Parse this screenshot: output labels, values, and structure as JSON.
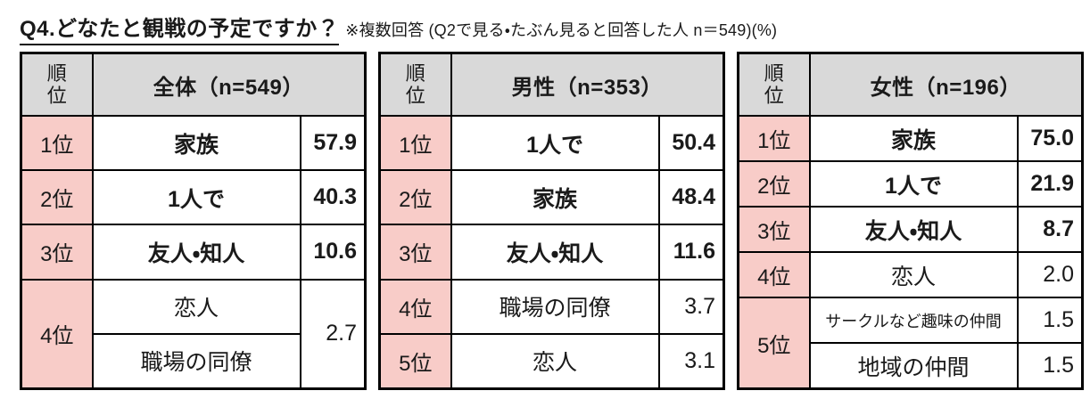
{
  "header": {
    "title": "Q4.どなたと観戦の予定ですか？",
    "note": "※複数回答 (Q2で見る・たぶん見ると回答した人 n＝549)(%)"
  },
  "rank_header": "順位",
  "colors": {
    "header_bg": "#d9d9d9",
    "rank_bg": "#f8ccc8",
    "border": "#000000"
  },
  "chart_data": [
    {
      "type": "table",
      "title": "全体（n=549）",
      "group": "全体",
      "n": 549,
      "unit": "%",
      "rows": [
        {
          "rank": "1位",
          "label": "家族",
          "value": "57.9"
        },
        {
          "rank": "2位",
          "label": "1人で",
          "value": "40.3"
        },
        {
          "rank": "3位",
          "label": "友人・知人",
          "value": "10.6"
        },
        {
          "rank": "4位",
          "label": "恋人",
          "label2": "職場の同僚",
          "value": "2.7"
        }
      ]
    },
    {
      "type": "table",
      "title": "男性（n=353）",
      "group": "男性",
      "n": 353,
      "unit": "%",
      "rows": [
        {
          "rank": "1位",
          "label": "1人で",
          "value": "50.4"
        },
        {
          "rank": "2位",
          "label": "家族",
          "value": "48.4"
        },
        {
          "rank": "3位",
          "label": "友人・知人",
          "value": "11.6"
        },
        {
          "rank": "4位",
          "label": "職場の同僚",
          "value": "3.7"
        },
        {
          "rank": "5位",
          "label": "恋人",
          "value": "3.1"
        }
      ]
    },
    {
      "type": "table",
      "title": "女性（n=196）",
      "group": "女性",
      "n": 196,
      "unit": "%",
      "rows": [
        {
          "rank": "1位",
          "label": "家族",
          "value": "75.0"
        },
        {
          "rank": "2位",
          "label": "1人で",
          "value": "21.9"
        },
        {
          "rank": "3位",
          "label": "友人・知人",
          "value": "8.7"
        },
        {
          "rank": "4位",
          "label": "恋人",
          "value": "2.0"
        },
        {
          "rank": "5位",
          "label": "サークルなど趣味の仲間",
          "value": "1.5",
          "label2": "地域の仲間",
          "value2": "1.5"
        }
      ]
    }
  ]
}
